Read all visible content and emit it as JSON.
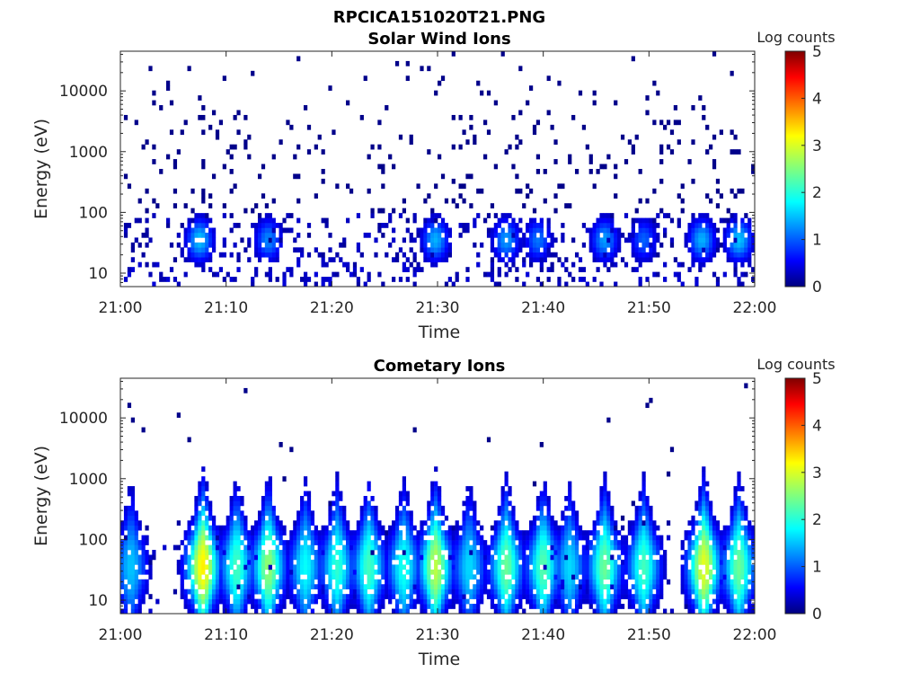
{
  "figure_title": "RPCICA151020T21.PNG",
  "chart_data": [
    {
      "type": "heatmap",
      "title": "Solar Wind Ions",
      "xlabel": "Time",
      "ylabel": "Energy (eV)",
      "x_ticks": [
        "21:00",
        "21:10",
        "21:20",
        "21:30",
        "21:40",
        "21:50",
        "22:00"
      ],
      "y_ticks": [
        "10",
        "100",
        "1000",
        "10000"
      ],
      "y_scale": "log",
      "xlim": [
        "21:00",
        "22:00"
      ],
      "ylim": [
        6,
        45000
      ],
      "colorbar": {
        "label": "Log counts",
        "ticks": [
          "0",
          "1",
          "2",
          "3",
          "4",
          "5"
        ],
        "range": [
          0,
          5
        ],
        "colormap": "jet"
      },
      "bursts": [
        {
          "time_min": 7.5,
          "peak_log_counts": 1.6
        },
        {
          "time_min": 14.0,
          "peak_log_counts": 1.3
        },
        {
          "time_min": 29.8,
          "peak_log_counts": 1.5
        },
        {
          "time_min": 36.5,
          "peak_log_counts": 1.4
        },
        {
          "time_min": 39.5,
          "peak_log_counts": 1.2
        },
        {
          "time_min": 45.8,
          "peak_log_counts": 1.4
        },
        {
          "time_min": 49.5,
          "peak_log_counts": 1.1
        },
        {
          "time_min": 55.0,
          "peak_log_counts": 1.5
        },
        {
          "time_min": 58.5,
          "peak_log_counts": 1.6
        }
      ]
    },
    {
      "type": "heatmap",
      "title": "Cometary Ions",
      "xlabel": "Time",
      "ylabel": "Energy (eV)",
      "x_ticks": [
        "21:00",
        "21:10",
        "21:20",
        "21:30",
        "21:40",
        "21:50",
        "22:00"
      ],
      "y_ticks": [
        "10",
        "100",
        "1000",
        "10000"
      ],
      "y_scale": "log",
      "xlim": [
        "21:00",
        "22:00"
      ],
      "ylim": [
        6,
        45000
      ],
      "colorbar": {
        "label": "Log counts",
        "ticks": [
          "0",
          "1",
          "2",
          "3",
          "4",
          "5"
        ],
        "range": [
          0,
          5
        ],
        "colormap": "jet"
      },
      "bursts": [
        {
          "time_min": 1.0,
          "peak_log_counts": 1.6
        },
        {
          "time_min": 7.8,
          "peak_log_counts": 3.2
        },
        {
          "time_min": 11.0,
          "peak_log_counts": 2.2
        },
        {
          "time_min": 14.0,
          "peak_log_counts": 2.6
        },
        {
          "time_min": 17.5,
          "peak_log_counts": 1.9
        },
        {
          "time_min": 20.5,
          "peak_log_counts": 2.1
        },
        {
          "time_min": 23.5,
          "peak_log_counts": 2.2
        },
        {
          "time_min": 26.8,
          "peak_log_counts": 2.0
        },
        {
          "time_min": 29.8,
          "peak_log_counts": 2.8
        },
        {
          "time_min": 33.0,
          "peak_log_counts": 1.7
        },
        {
          "time_min": 36.5,
          "peak_log_counts": 2.4
        },
        {
          "time_min": 40.0,
          "peak_log_counts": 2.3
        },
        {
          "time_min": 42.5,
          "peak_log_counts": 1.7
        },
        {
          "time_min": 45.8,
          "peak_log_counts": 2.4
        },
        {
          "time_min": 49.5,
          "peak_log_counts": 2.2
        },
        {
          "time_min": 55.2,
          "peak_log_counts": 3.0
        },
        {
          "time_min": 58.5,
          "peak_log_counts": 2.4
        }
      ]
    }
  ]
}
